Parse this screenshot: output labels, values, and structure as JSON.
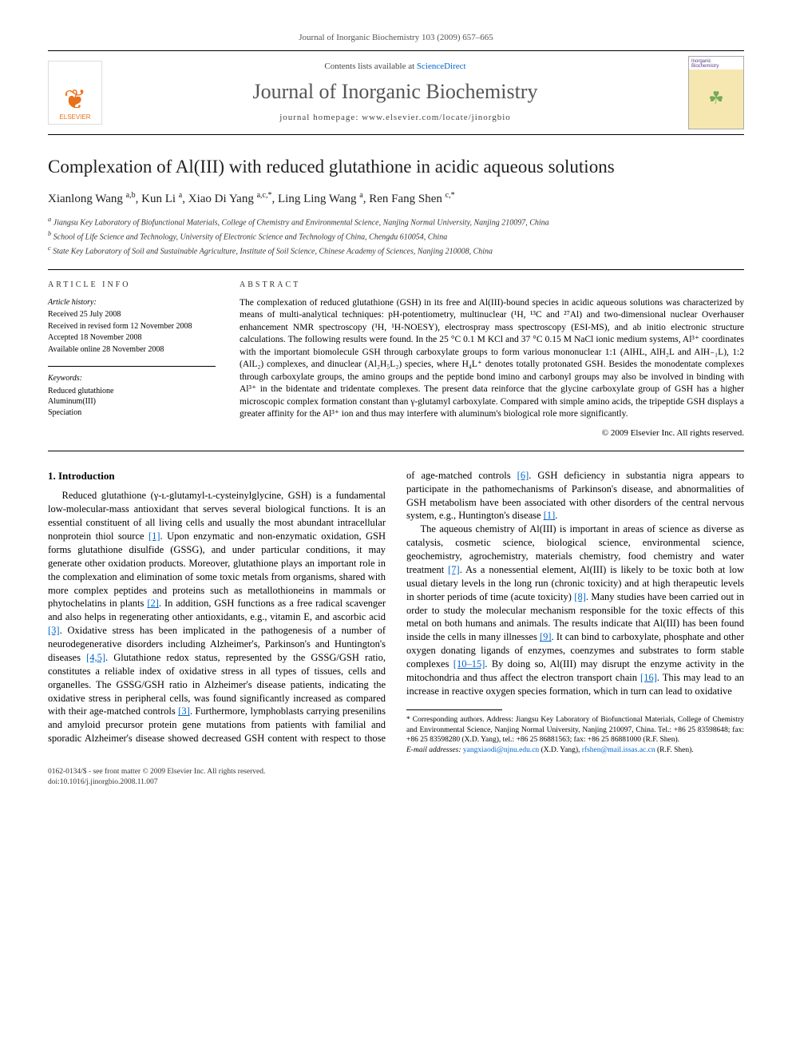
{
  "header": {
    "citation": "Journal of Inorganic Biochemistry 103 (2009) 657–665",
    "contents_prefix": "Contents lists available at ",
    "contents_link": "ScienceDirect",
    "journal_name": "Journal of Inorganic Biochemistry",
    "homepage_prefix": "journal homepage: ",
    "homepage": "www.elsevier.com/locate/jinorgbio",
    "publisher": "ELSEVIER",
    "cover_line1": "Inorganic",
    "cover_line2": "Biochemistry"
  },
  "article": {
    "title": "Complexation of Al(III) with reduced glutathione in acidic aqueous solutions",
    "authors_html": "Xianlong Wang <sup>a,b</sup>, Kun Li <sup>a</sup>, Xiao Di Yang <sup>a,c,*</sup>, Ling Ling Wang <sup>a</sup>, Ren Fang Shen <sup>c,*</sup>",
    "affiliations": {
      "a": "Jiangsu Key Laboratory of Biofunctional Materials, College of Chemistry and Environmental Science, Nanjing Normal University, Nanjing 210097, China",
      "b": "School of Life Science and Technology, University of Electronic Science and Technology of China, Chengdu 610054, China",
      "c": "State Key Laboratory of Soil and Sustainable Agriculture, Institute of Soil Science, Chinese Academy of Sciences, Nanjing 210008, China"
    }
  },
  "info": {
    "heading": "ARTICLE INFO",
    "history_head": "Article history:",
    "history": [
      "Received 25 July 2008",
      "Received in revised form 12 November 2008",
      "Accepted 18 November 2008",
      "Available online 28 November 2008"
    ],
    "keywords_head": "Keywords:",
    "keywords": [
      "Reduced glutathione",
      "Aluminum(III)",
      "Speciation"
    ]
  },
  "abstract": {
    "heading": "ABSTRACT",
    "text": "The complexation of reduced glutathione (GSH) in its free and Al(III)-bound species in acidic aqueous solutions was characterized by means of multi-analytical techniques: pH-potentiometry, multinuclear (¹H, ¹³C and ²⁷Al) and two-dimensional nuclear Overhauser enhancement NMR spectroscopy (¹H, ¹H-NOESY), electrospray mass spectroscopy (ESI-MS), and ab initio electronic structure calculations. The following results were found. In the 25 °C 0.1 M KCl and 37 °C 0.15 M NaCl ionic medium systems, Al³⁺ coordinates with the important biomolecule GSH through carboxylate groups to form various mononuclear 1:1 (AlHL, AlH₂L and AlH₋₁L), 1:2 (AlL₂) complexes, and dinuclear (Al₂H₅L₂) species, where H₄L⁺ denotes totally protonated GSH. Besides the monodentate complexes through carboxylate groups, the amino groups and the peptide bond imino and carbonyl groups may also be involved in binding with Al³⁺ in the bidentate and tridentate complexes. The present data reinforce that the glycine carboxylate group of GSH has a higher microscopic complex formation constant than γ-glutamyl carboxylate. Compared with simple amino acids, the tripeptide GSH displays a greater affinity for the Al³⁺ ion and thus may interfere with aluminum's biological role more significantly.",
    "copyright": "© 2009 Elsevier Inc. All rights reserved."
  },
  "body": {
    "section1_head": "1. Introduction",
    "p1a": "Reduced glutathione (γ-ʟ-glutamyl-ʟ-cysteinylglycine, GSH) is a fundamental low-molecular-mass antioxidant that serves several biological functions. It is an essential constituent of all living cells and usually the most abundant intracellular nonprotein thiol source ",
    "r1": "[1]",
    "p1b": ". Upon enzymatic and non-enzymatic oxidation, GSH forms glutathione disulfide (GSSG), and under particular conditions, it may generate other oxidation products. Moreover, glutathione plays an important role in the complexation and elimination of some toxic metals from organisms, shared with more complex peptides and proteins such as metallothioneins in mammals or phytochelatins in plants ",
    "r2": "[2]",
    "p1c": ". In addition, GSH functions as a free radical scavenger and also helps in regenerating other antioxidants, e.g., vitamin E, and ascorbic acid ",
    "r3": "[3]",
    "p1d": ". Oxidative stress has been implicated in the pathogenesis of a number of neurodegenerative disorders including Alzheimer's, Parkinson's and Huntington's diseases ",
    "r4": "[4,5]",
    "p1e": ". Glutathione redox status, represented by the GSSG/GSH ratio, constitutes a reliable index of oxidative stress in all types of tissues, cells and organelles. The GSSG/GSH ratio in Alzheimer's disease patients, indicating the oxidative stress in peripheral cells, was found significantly increased as compared with their age-matched controls ",
    "r3b": "[3]",
    "p1f": ". Furthermore, lymphoblasts carrying presenilins and amyloid precursor protein gene mutations from patients with familial and sporadic Alzheimer's disease showed decreased GSH content with respect to those of age-matched controls ",
    "r6": "[6]",
    "p1g": ". GSH deficiency in substantia nigra appears to participate in the pathomechanisms of Parkinson's disease, and abnormalities of GSH metabolism have been associated with other disorders of the central nervous system, e.g., Huntington's disease ",
    "r1b": "[1]",
    "p1h": ".",
    "p2a": "The aqueous chemistry of Al(III) is important in areas of science as diverse as catalysis, cosmetic science, biological science, environmental science, geochemistry, agrochemistry, materials chemistry, food chemistry and water treatment ",
    "r7": "[7]",
    "p2b": ". As a nonessential element, Al(III) is likely to be toxic both at low usual dietary levels in the long run (chronic toxicity) and at high therapeutic levels in shorter periods of time (acute toxicity) ",
    "r8": "[8]",
    "p2c": ". Many studies have been carried out in order to study the molecular mechanism responsible for the toxic effects of this metal on both humans and animals. The results indicate that Al(III) has been found inside the cells in many illnesses ",
    "r9": "[9]",
    "p2d": ". It can bind to carboxylate, phosphate and other oxygen donating ligands of enzymes, coenzymes and substrates to form stable complexes ",
    "r10": "[10–15]",
    "p2e": ". By doing so, Al(III) may disrupt the enzyme activity in the mitochondria and thus affect the electron transport chain ",
    "r16": "[16]",
    "p2f": ". This may lead to an increase in reactive oxygen species formation, which in turn can lead to oxidative"
  },
  "footnotes": {
    "corr": "* Corresponding authors. Address: Jiangsu Key Laboratory of Biofunctional Materials, College of Chemistry and Environmental Science, Nanjing Normal University, Nanjing 210097, China. Tel.: +86 25 83598648; fax: +86 25 83598280 (X.D. Yang), tel.: +86 25 86881563; fax: +86 25 86881000 (R.F. Shen).",
    "email_label": "E-mail addresses: ",
    "email1": "yangxiaodi@njnu.edu.cn",
    "email1_who": " (X.D. Yang), ",
    "email2": "rfshen@mail.issas.ac.cn",
    "email2_who": " (R.F. Shen)."
  },
  "footer": {
    "line1": "0162-0134/$ - see front matter © 2009 Elsevier Inc. All rights reserved.",
    "line2": "doi:10.1016/j.jinorgbio.2008.11.007"
  },
  "colors": {
    "link": "#0066cc",
    "elsevier_orange": "#E9711C",
    "text": "#000000",
    "muted": "#555555"
  }
}
